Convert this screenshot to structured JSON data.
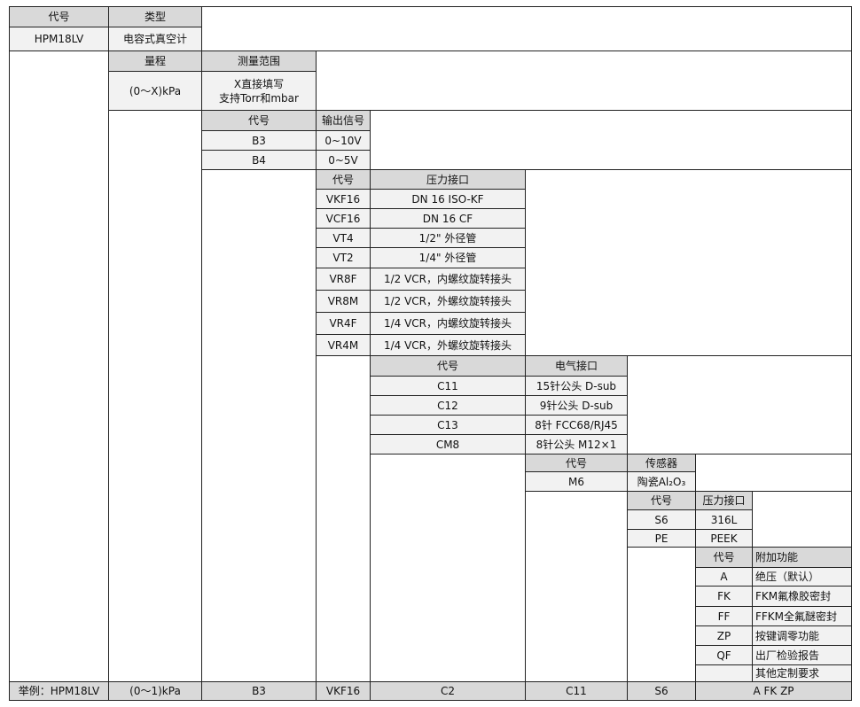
{
  "colors": {
    "header_bg": "#d9d9d9",
    "cell_bg": "#f2f2f2",
    "border": "#222222"
  },
  "s1": {
    "headers": [
      "代号",
      "类型"
    ],
    "rows": [
      [
        "HPM18LV",
        "电容式真空计"
      ]
    ]
  },
  "s2": {
    "headers": [
      "量程",
      "测量范围"
    ],
    "rows": [
      [
        "(0～X)kPa",
        "X直接填写\n支持Torr和mbar"
      ]
    ]
  },
  "s3": {
    "headers": [
      "代号",
      "输出信号"
    ],
    "rows": [
      [
        "B3",
        "0~10V"
      ],
      [
        "B4",
        "0~5V"
      ]
    ]
  },
  "s4": {
    "headers": [
      "代号",
      "压力接口"
    ],
    "rows": [
      [
        "VKF16",
        "DN 16 ISO-KF"
      ],
      [
        "VCF16",
        "DN 16 CF"
      ],
      [
        "VT4",
        "1/2\" 外径管"
      ],
      [
        "VT2",
        "1/4\" 外径管"
      ],
      [
        "VR8F",
        "1/2 VCR，内螺纹旋转接头"
      ],
      [
        "VR8M",
        "1/2 VCR，外螺纹旋转接头"
      ],
      [
        "VR4F",
        "1/4 VCR，内螺纹旋转接头"
      ],
      [
        "VR4M",
        "1/4 VCR，外螺纹旋转接头"
      ]
    ]
  },
  "s5": {
    "headers": [
      "代号",
      "电气接口"
    ],
    "rows": [
      [
        "C11",
        "15针公头 D-sub"
      ],
      [
        "C12",
        "9针公头 D-sub"
      ],
      [
        "C13",
        "8针 FCC68/RJ45"
      ],
      [
        "CM8",
        "8针公头 M12×1"
      ]
    ]
  },
  "s6": {
    "headers": [
      "代号",
      "传感器"
    ],
    "rows": [
      [
        "M6",
        "陶瓷Al₂O₃"
      ]
    ]
  },
  "s7": {
    "headers": [
      "代号",
      "压力接口"
    ],
    "rows": [
      [
        "S6",
        "316L"
      ],
      [
        "PE",
        "PEEK"
      ]
    ]
  },
  "s8": {
    "headers": [
      "代号",
      "附加功能"
    ],
    "rows": [
      [
        "A",
        "绝压（默认）"
      ],
      [
        "FK",
        "FKM氟橡胶密封"
      ],
      [
        "FF",
        "FFKM全氟醚密封"
      ],
      [
        "ZP",
        "按键调零功能"
      ],
      [
        "QF",
        "出厂检验报告"
      ],
      [
        "",
        "其他定制要求"
      ]
    ]
  },
  "example": [
    "举例：HPM18LV",
    "(0～1)kPa",
    "B3",
    "VKF16",
    "C2",
    "C11",
    "S6",
    "A FK ZP"
  ]
}
